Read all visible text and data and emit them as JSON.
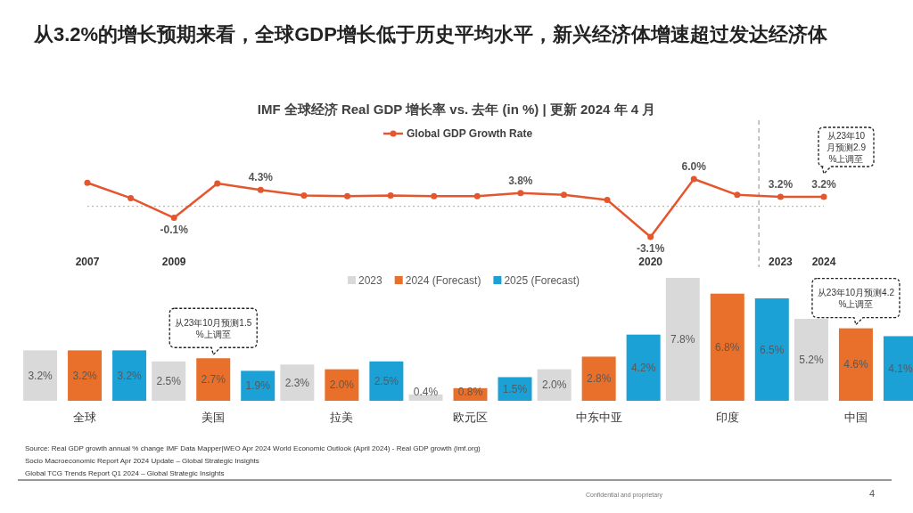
{
  "chart_data": [
    {
      "type": "line",
      "title": "从3.2%的增长预期来看，全球GDP增长低于历史平均水平，新兴经济体增速超过发达经济体",
      "subtitle": "IMF 全球经济 Real GDP 增长率 vs. 去年 (in %) | 更新 2024 年 4 月",
      "x": [
        2007,
        2008,
        2009,
        2010,
        2011,
        2012,
        2013,
        2014,
        2015,
        2016,
        2017,
        2018,
        2019,
        2020,
        2021,
        2022,
        2023,
        2024
      ],
      "series": [
        {
          "name": "Global GDP Growth Rate",
          "color": "#e4572e",
          "values": [
            5.4,
            3.0,
            -0.1,
            5.3,
            4.3,
            3.4,
            3.3,
            3.4,
            3.3,
            3.3,
            3.8,
            3.5,
            2.7,
            -3.1,
            6.0,
            3.5,
            3.2,
            3.2
          ],
          "value_labels": [
            null,
            null,
            "-0.1%",
            null,
            "4.3%",
            null,
            null,
            null,
            null,
            null,
            "3.8%",
            null,
            null,
            "-3.1%",
            "6.0%",
            null,
            "3.2%",
            "3.2%"
          ]
        }
      ],
      "xlim": [
        2007,
        2024
      ],
      "xticks": [
        2007,
        2009,
        2020,
        2023,
        2024
      ],
      "tick_labels": "x",
      "ref_lines": [
        {
          "axis": "x",
          "value": 2022.5,
          "color": "#8c8c8c",
          "line_style": "dashed"
        },
        {
          "axis": "y",
          "value": 1.7,
          "color": "#a6a6a6",
          "line_style": "dotted"
        }
      ],
      "annotations": [
        "从23年10月预测2.9%上调至"
      ],
      "legend": "top",
      "marker": "circle",
      "line_style": "solid"
    },
    {
      "type": "bar",
      "categories": [
        "全球",
        "美国",
        "拉美",
        "欧元区",
        "中东中亚",
        "印度",
        "中国"
      ],
      "series": [
        {
          "name": "2023",
          "color": "#d9d9d9",
          "values": [
            3.2,
            2.5,
            2.3,
            0.4,
            2.0,
            7.8,
            5.2
          ],
          "value_labels": [
            "3.2%",
            "2.5%",
            "2.3%",
            "0.4%",
            "2.0%",
            "7.8%",
            "5.2%"
          ]
        },
        {
          "name": "2024 (Forecast)",
          "color": "#e8702a",
          "values": [
            3.2,
            2.7,
            2.0,
            0.8,
            2.8,
            6.8,
            4.6
          ],
          "value_labels": [
            "3.2%",
            "2.7%",
            "2.0%",
            "0.8%",
            "2.8%",
            "6.8%",
            "4.6%"
          ]
        },
        {
          "name": "2025 (Forecast)",
          "color": "#1ba1d6",
          "values": [
            3.2,
            1.9,
            2.5,
            1.5,
            4.2,
            6.5,
            4.1
          ],
          "value_labels": [
            "3.2%",
            "1.9%",
            "2.5%",
            "1.5%",
            "4.2%",
            "6.5%",
            "4.1%"
          ]
        }
      ],
      "tick_labels": "x",
      "legend": "top",
      "annotations": [
        {
          "text": "从23年10月预测1.5%上调至",
          "x": "美国",
          "y": 2.7
        },
        {
          "text": "从23年10月预测4.2%上调至",
          "x": "中国",
          "y": 4.6
        },
        "Source: Real GDP growth annual % change IMF Data Mapper|WEO Apr 2024 World Economic Outlook (April 2024) - Real GDP growth (imf.org)",
        "Socio Macroeconomic Report Apr 2024 Update – Global Strategic Insights",
        "Global TCG Trends Report Q1 2024 – Global Strategic Insights",
        "Confidential and proprietary",
        "4"
      ]
    }
  ]
}
